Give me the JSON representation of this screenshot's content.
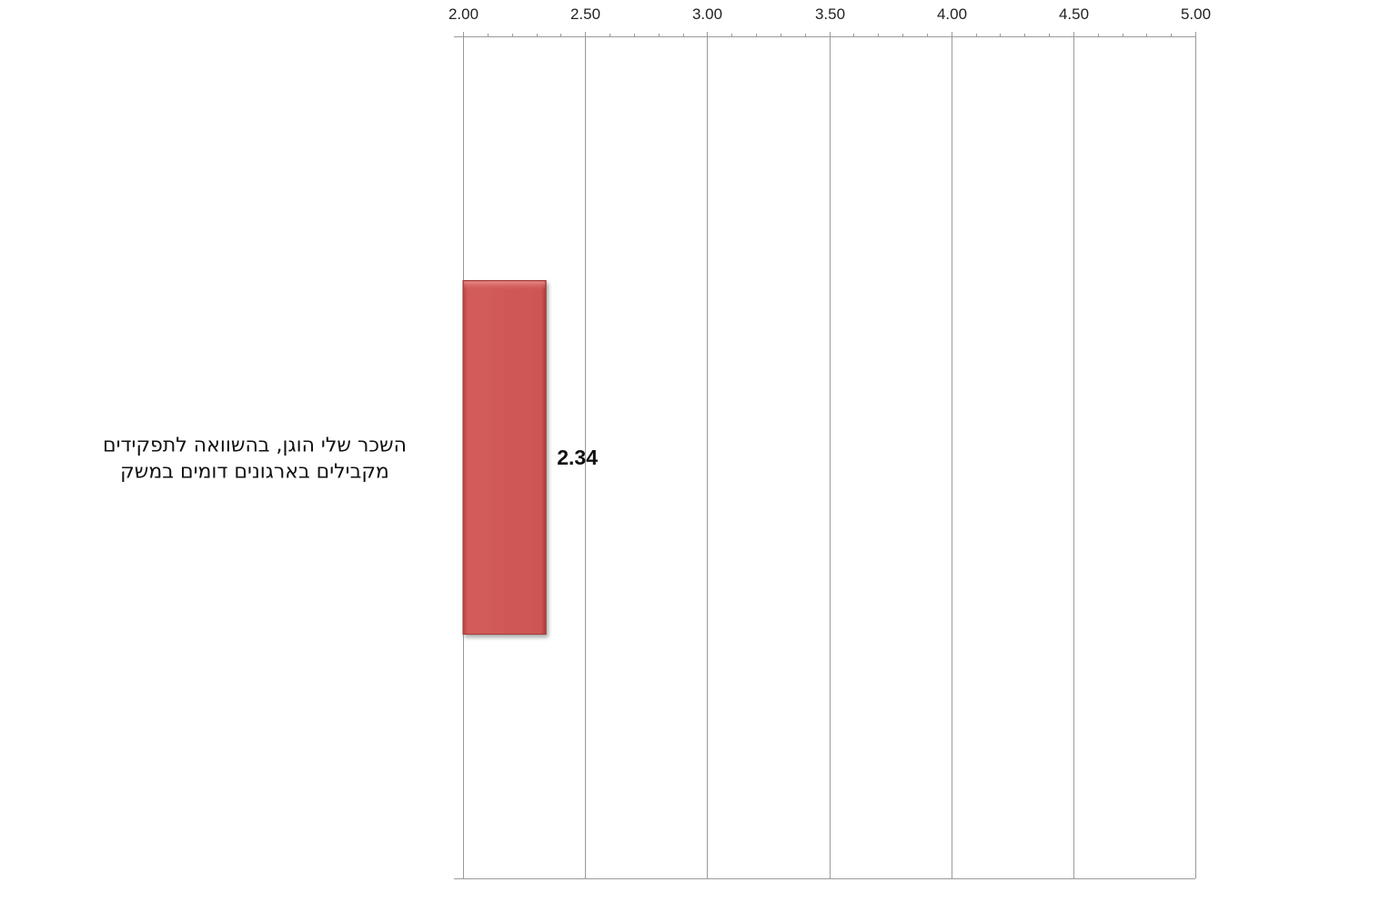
{
  "chart_data": {
    "type": "bar",
    "orientation": "horizontal",
    "title": "",
    "xlabel": "",
    "ylabel": "",
    "xlim": [
      2.0,
      5.0
    ],
    "major_step": 0.5,
    "minor_step": 0.1,
    "tick_labels": [
      "2.00",
      "2.50",
      "3.00",
      "3.50",
      "4.00",
      "4.50",
      "5.00"
    ],
    "x_axis_position": "top",
    "grid": true,
    "legend": "none",
    "categories": [
      [
        "השכר שלי הוגן, בהשוואה לתפקידים",
        "מקבילים בארגונים דומים במשק"
      ]
    ],
    "values": [
      2.34
    ],
    "data_labels": [
      "2.34"
    ],
    "bar_color": "#cd5755",
    "grid_color": "#9a9a9a"
  }
}
